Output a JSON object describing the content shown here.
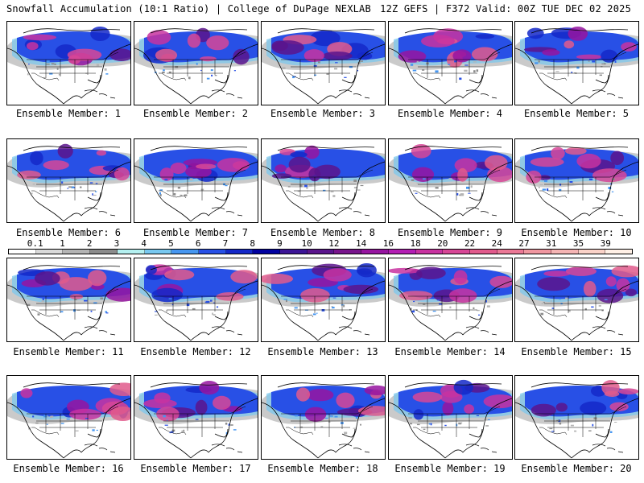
{
  "header": {
    "left_title": "Snowfall Accumulation (10:1 Ratio) | College of DuPage NEXLAB",
    "right_title": "12Z GEFS | F372 Valid: 00Z TUE DEC 02 2025"
  },
  "panels": [
    {
      "label": "Ensemble Member: 1"
    },
    {
      "label": "Ensemble Member: 2"
    },
    {
      "label": "Ensemble Member: 3"
    },
    {
      "label": "Ensemble Member: 4"
    },
    {
      "label": "Ensemble Member: 5"
    },
    {
      "label": "Ensemble Member: 6"
    },
    {
      "label": "Ensemble Member: 7"
    },
    {
      "label": "Ensemble Member: 8"
    },
    {
      "label": "Ensemble Member: 9"
    },
    {
      "label": "Ensemble Member: 10"
    },
    {
      "label": "Ensemble Member: 11"
    },
    {
      "label": "Ensemble Member: 12"
    },
    {
      "label": "Ensemble Member: 13"
    },
    {
      "label": "Ensemble Member: 14"
    },
    {
      "label": "Ensemble Member: 15"
    },
    {
      "label": "Ensemble Member: 16"
    },
    {
      "label": "Ensemble Member: 17"
    },
    {
      "label": "Ensemble Member: 18"
    },
    {
      "label": "Ensemble Member: 19"
    },
    {
      "label": "Ensemble Member: 20"
    }
  ],
  "colorbar": {
    "labels": [
      "0.1",
      "1",
      "2",
      "3",
      "4",
      "5",
      "6",
      "7",
      "8",
      "9",
      "10",
      "12",
      "14",
      "16",
      "18",
      "20",
      "22",
      "24",
      "27",
      "31",
      "35",
      "39"
    ],
    "colors": [
      "#ffffff",
      "#d9d9d9",
      "#b4b4b4",
      "#8c8c8c",
      "#b4f0f0",
      "#78c8f0",
      "#4696f0",
      "#2850e6",
      "#1428c8",
      "#0000a0",
      "#3c1496",
      "#5a148c",
      "#78148c",
      "#9614a0",
      "#b41eb4",
      "#c832a0",
      "#d74696",
      "#e15a8c",
      "#eb7896",
      "#f096a0",
      "#f5b4b4",
      "#fad2c8",
      "#fff0e6"
    ]
  }
}
